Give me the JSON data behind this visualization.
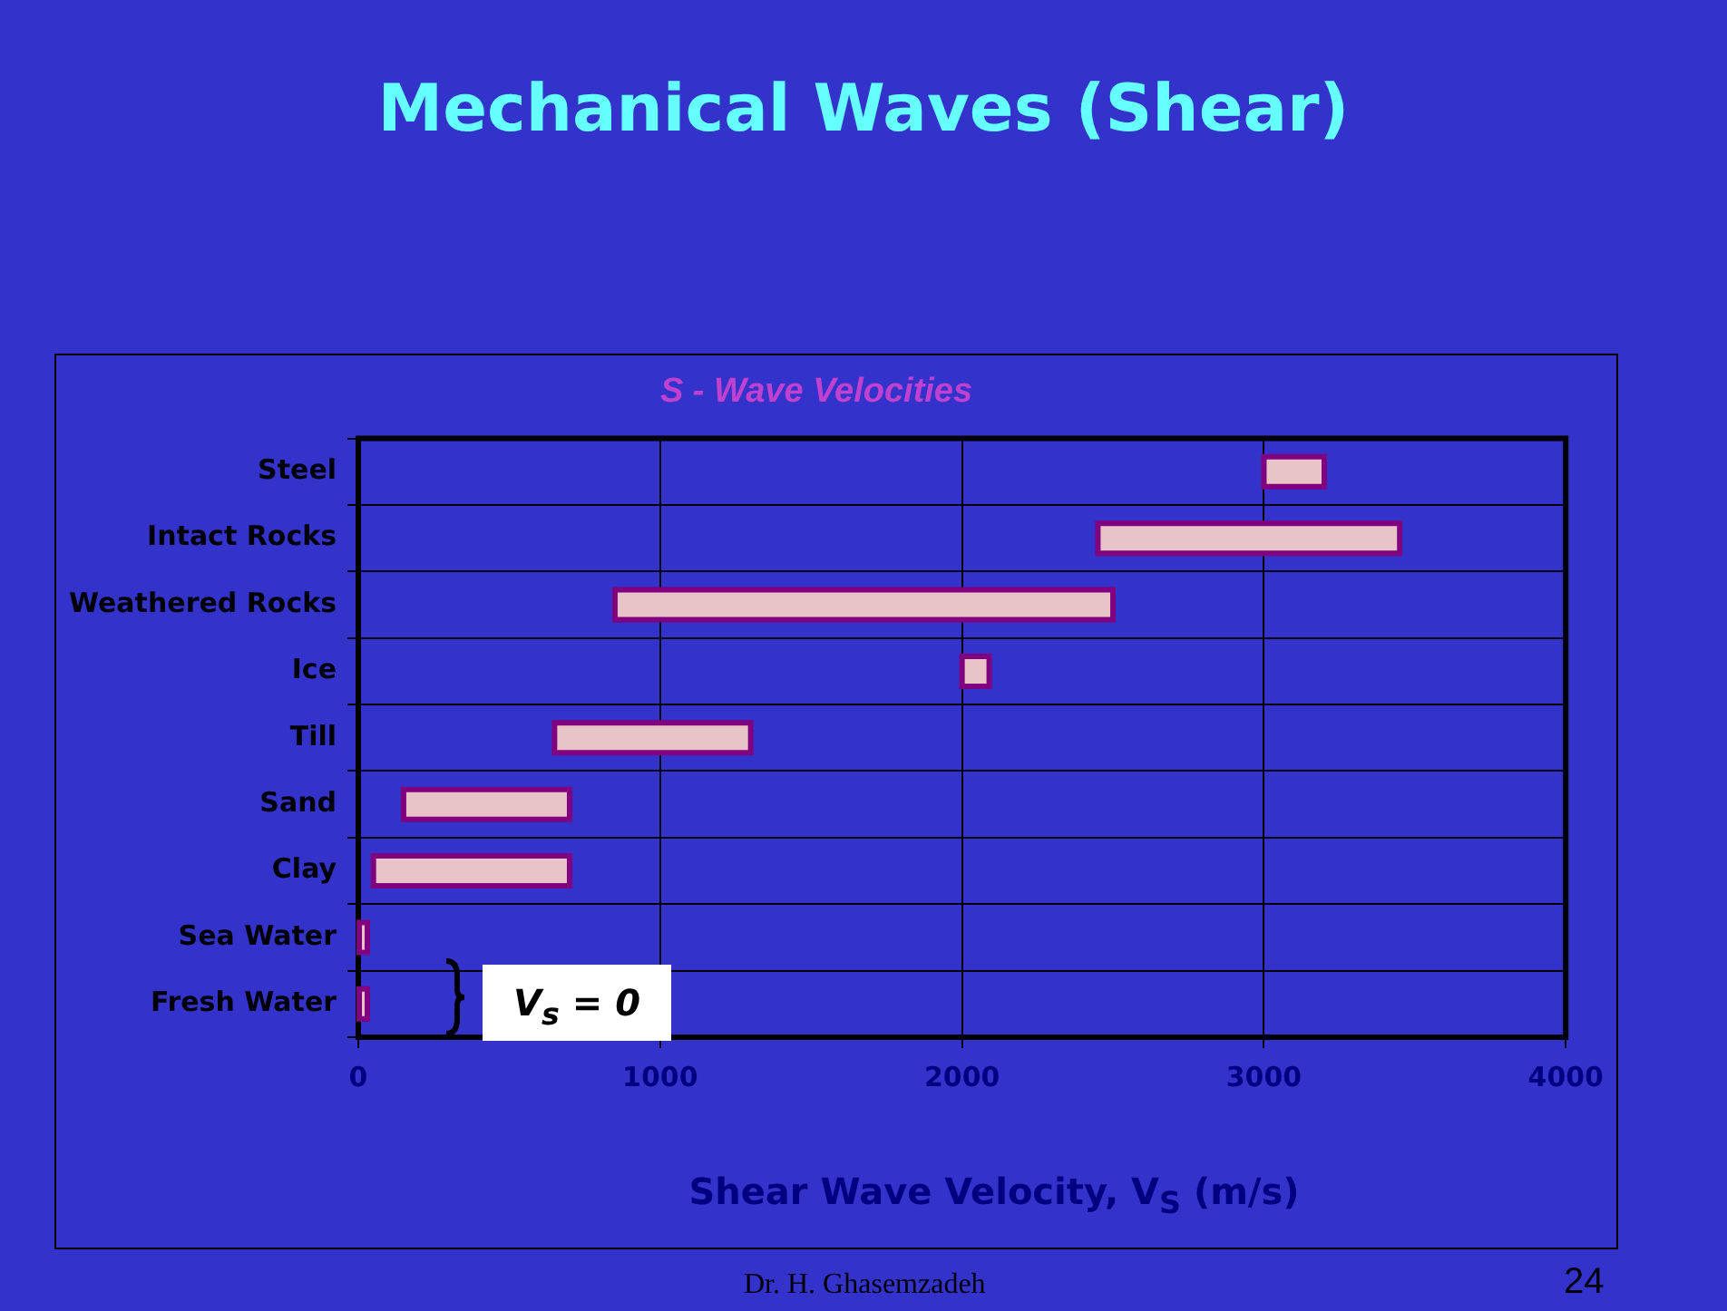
{
  "chart_data": {
    "type": "bar",
    "orientation": "horizontal",
    "title": "Mechanical Waves (Shear)",
    "subtitle": "S - Wave Velocities",
    "xlabel": "Shear Wave Velocity, V$_{S}$ (m/s)",
    "categories": [
      "Steel",
      "Intact Rocks",
      "Weathered Rocks",
      "Ice",
      "Till",
      "Sand",
      "Clay",
      "Sea Water",
      "Fresh Water"
    ],
    "base": [
      3000,
      2450,
      850,
      2000,
      650,
      150,
      50,
      0,
      0
    ],
    "values": [
      200,
      1000,
      1650,
      90,
      650,
      550,
      650,
      30,
      30
    ],
    "color": "#e8c4c8",
    "xlim": [
      0,
      4000
    ],
    "xticks": [
      0,
      1000,
      2000,
      3000,
      4000
    ],
    "grid": true,
    "legend": false,
    "annotations": [
      "V$_{s}$ = 0",
      "Dr. H. Ghasemzadeh",
      "24"
    ]
  }
}
